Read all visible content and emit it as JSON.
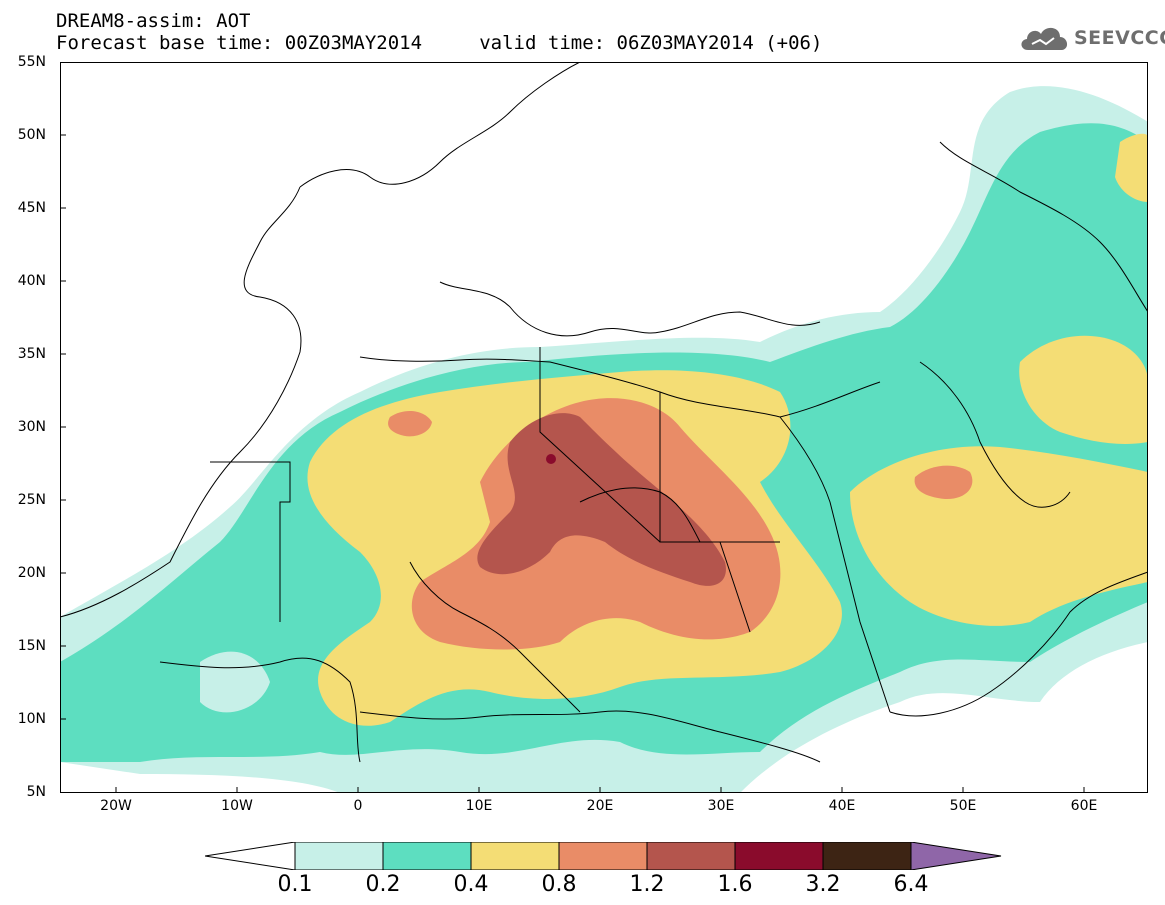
{
  "header": {
    "title_line1": "DREAM8-assim: AOT",
    "title_line2": "Forecast base time: 00Z03MAY2014     valid time: 06Z03MAY2014 (+06)"
  },
  "logo": {
    "text": "SEEVCCC",
    "icon": "cloud-icon"
  },
  "map": {
    "lat_labels": [
      "55N",
      "50N",
      "45N",
      "40N",
      "35N",
      "30N",
      "25N",
      "20N",
      "15N",
      "10N",
      "5N"
    ],
    "lon_labels": [
      "20W",
      "10W",
      "0",
      "10E",
      "20E",
      "30E",
      "40E",
      "50E",
      "60E"
    ]
  },
  "colorbar": {
    "ticks": [
      "0.1",
      "0.2",
      "0.4",
      "0.8",
      "1.2",
      "1.6",
      "3.2",
      "6.4"
    ],
    "colors": [
      "#ffffff",
      "#c7f0e8",
      "#5ddec0",
      "#f4dd75",
      "#e98c67",
      "#b4554d",
      "#8a0b2c",
      "#3d2414",
      "#8f66a8"
    ]
  }
}
